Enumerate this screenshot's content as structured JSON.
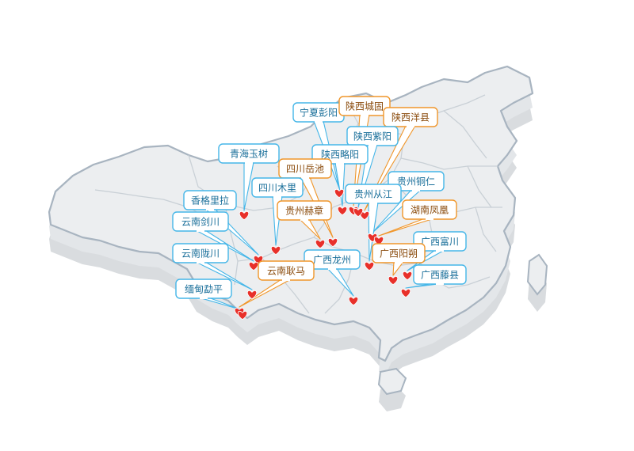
{
  "map": {
    "region_fill": "#eceef0",
    "region_shadow": "#d9dcdf",
    "border_color": "#a8b4c0",
    "inner_border_color": "#c9d0d6",
    "marker_color": "#e8302a"
  },
  "styles": {
    "blue": {
      "stroke": "#45b6e8",
      "text": "#1a6f9a"
    },
    "orange": {
      "stroke": "#f0962a",
      "text": "#8a4b0c"
    }
  },
  "locations": [
    {
      "id": "ningxia-pengyang",
      "label": "宁夏彭阳",
      "style": "blue"
    },
    {
      "id": "shaanxi-chenggu",
      "label": "陕西城固",
      "style": "orange"
    },
    {
      "id": "shaanxi-yangxian",
      "label": "陕西洋县",
      "style": "orange"
    },
    {
      "id": "shaanxi-ziyang",
      "label": "陕西紫阳",
      "style": "blue"
    },
    {
      "id": "qinghai-yushu",
      "label": "青海玉树",
      "style": "blue"
    },
    {
      "id": "shaanxi-lueyang",
      "label": "陕西略阳",
      "style": "blue"
    },
    {
      "id": "sichuan-yuechi",
      "label": "四川岳池",
      "style": "orange"
    },
    {
      "id": "sichuan-muli",
      "label": "四川木里",
      "style": "blue"
    },
    {
      "id": "guizhou-tongren",
      "label": "贵州铜仁",
      "style": "blue"
    },
    {
      "id": "guizhou-congjiang",
      "label": "贵州从江",
      "style": "blue"
    },
    {
      "id": "xianggelila",
      "label": "香格里拉",
      "style": "blue"
    },
    {
      "id": "guizhou-hezhang",
      "label": "贵州赫章",
      "style": "orange"
    },
    {
      "id": "hunan-fenghuang",
      "label": "湖南凤凰",
      "style": "orange"
    },
    {
      "id": "yunnan-jianchuan",
      "label": "云南剑川",
      "style": "blue"
    },
    {
      "id": "guangxi-fuchuan",
      "label": "广西富川",
      "style": "blue"
    },
    {
      "id": "yunnan-longchuan",
      "label": "云南陇川",
      "style": "blue"
    },
    {
      "id": "guangxi-yangshuo",
      "label": "广西阳朔",
      "style": "orange"
    },
    {
      "id": "guangxi-longzhou",
      "label": "广西龙州",
      "style": "blue"
    },
    {
      "id": "yunnan-gengma",
      "label": "云南耿马",
      "style": "orange"
    },
    {
      "id": "guangxi-tengxian",
      "label": "广西藤县",
      "style": "blue"
    },
    {
      "id": "myanmar-mengping",
      "label": "缅甸勐平",
      "style": "blue"
    }
  ]
}
